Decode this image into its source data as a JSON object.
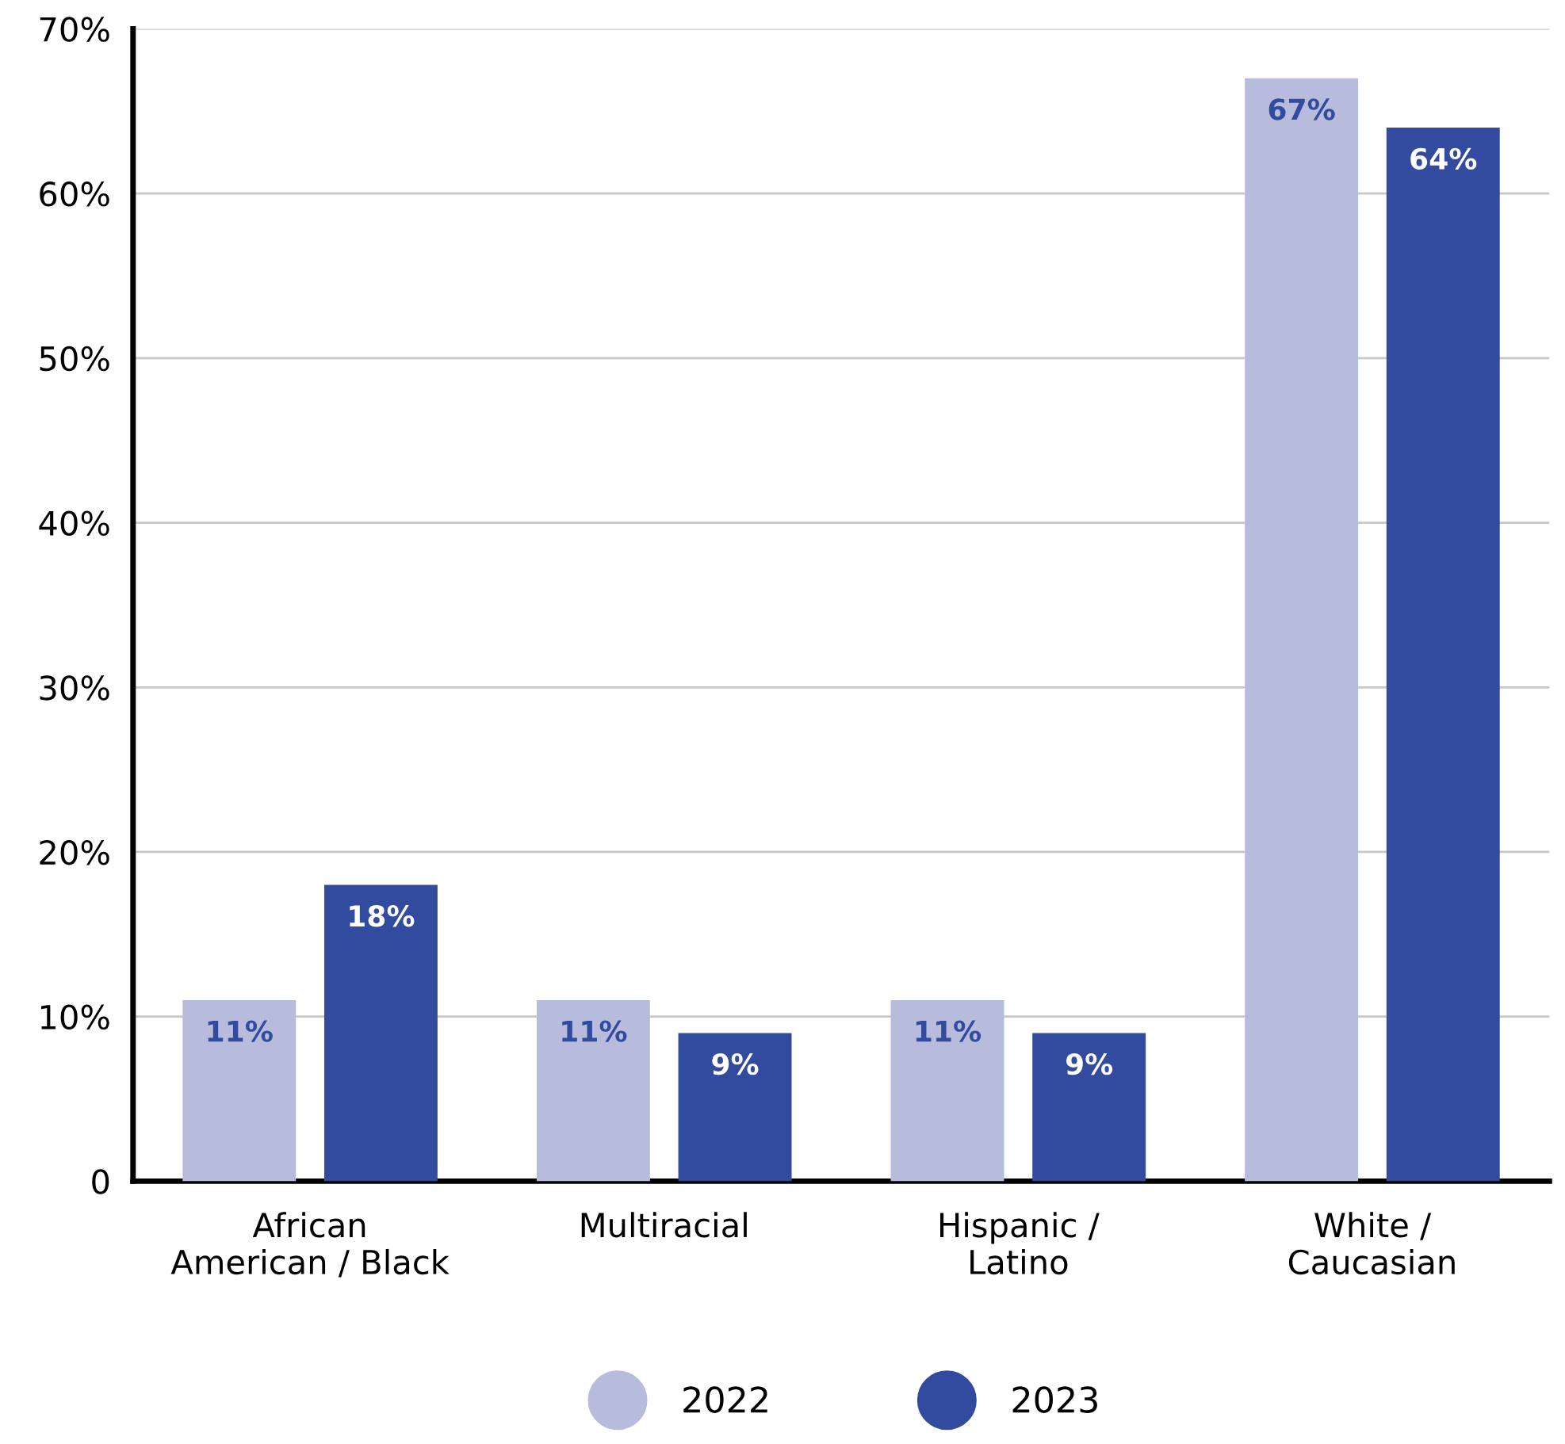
{
  "chart_data": {
    "type": "bar",
    "categories": [
      "African\nAmerican / Black",
      "Multiracial",
      "Hispanic /\nLatino",
      "White /\nCaucasian"
    ],
    "series": [
      {
        "name": "2022",
        "color": "#b8bcdc",
        "values": [
          11,
          11,
          11,
          67
        ],
        "value_labels": [
          "11%",
          "11%",
          "11%",
          "67%"
        ]
      },
      {
        "name": "2023",
        "color": "#324b9e",
        "values": [
          18,
          9,
          9,
          64
        ],
        "value_labels": [
          "18%",
          "9%",
          "9%",
          "64%"
        ]
      }
    ],
    "ylim": [
      0,
      70
    ],
    "yticks": [
      0,
      {
        "value": 10,
        "label": "10%"
      },
      {
        "value": 20,
        "label": "20%"
      },
      {
        "value": 30,
        "label": "30%"
      },
      {
        "value": 40,
        "label": "40%"
      },
      {
        "value": 50,
        "label": "50%"
      },
      {
        "value": 60,
        "label": "60%"
      },
      {
        "value": 70,
        "label": "70%"
      }
    ],
    "grid": "y",
    "legend": "bottom"
  }
}
